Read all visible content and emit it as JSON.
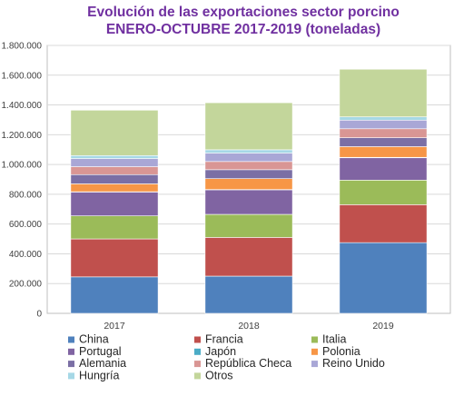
{
  "chart_data": {
    "type": "bar",
    "stacked": true,
    "title_line1": "Evolución de las exportaciones sector porcino",
    "title_line2": "ENERO-OCTUBRE 2017-2019 (toneladas)",
    "categories": [
      "2017",
      "2018",
      "2019"
    ],
    "ylim": [
      0,
      1800000
    ],
    "yticks": [
      "0",
      "200.000",
      "400.000",
      "600.000",
      "800.000",
      "1.000.000",
      "1.200.000",
      "1.400.000",
      "1.600.000",
      "1.800.000"
    ],
    "grid": true,
    "legend_position": "bottom",
    "series": [
      {
        "name": "China",
        "color": "#4f81bd",
        "values": [
          245000,
          250000,
          475000
        ]
      },
      {
        "name": "Francia",
        "color": "#c0504d",
        "values": [
          255000,
          260000,
          255000
        ]
      },
      {
        "name": "Italia",
        "color": "#9bbb59",
        "values": [
          155000,
          155000,
          165000
        ]
      },
      {
        "name": "Portugal",
        "color": "#8064a2",
        "values": [
          160000,
          165000,
          150000
        ]
      },
      {
        "name": "Japón",
        "color": "#4bacc6",
        "values": [
          2000,
          2000,
          3000
        ]
      },
      {
        "name": "Polonia",
        "color": "#f79646",
        "values": [
          53000,
          73000,
          72000
        ]
      },
      {
        "name": "Alemania",
        "color": "#7b6fa5",
        "values": [
          62000,
          60000,
          60000
        ]
      },
      {
        "name": "República Checa",
        "color": "#d99694",
        "values": [
          53000,
          55000,
          60000
        ]
      },
      {
        "name": "Reino Unido",
        "color": "#a9a7d6",
        "values": [
          55000,
          57000,
          58000
        ]
      },
      {
        "name": "Hungría",
        "color": "#a6d8e6",
        "values": [
          20000,
          22000,
          22000
        ]
      },
      {
        "name": "Otros",
        "color": "#c3d69b",
        "values": [
          305000,
          316000,
          320000
        ]
      }
    ]
  }
}
